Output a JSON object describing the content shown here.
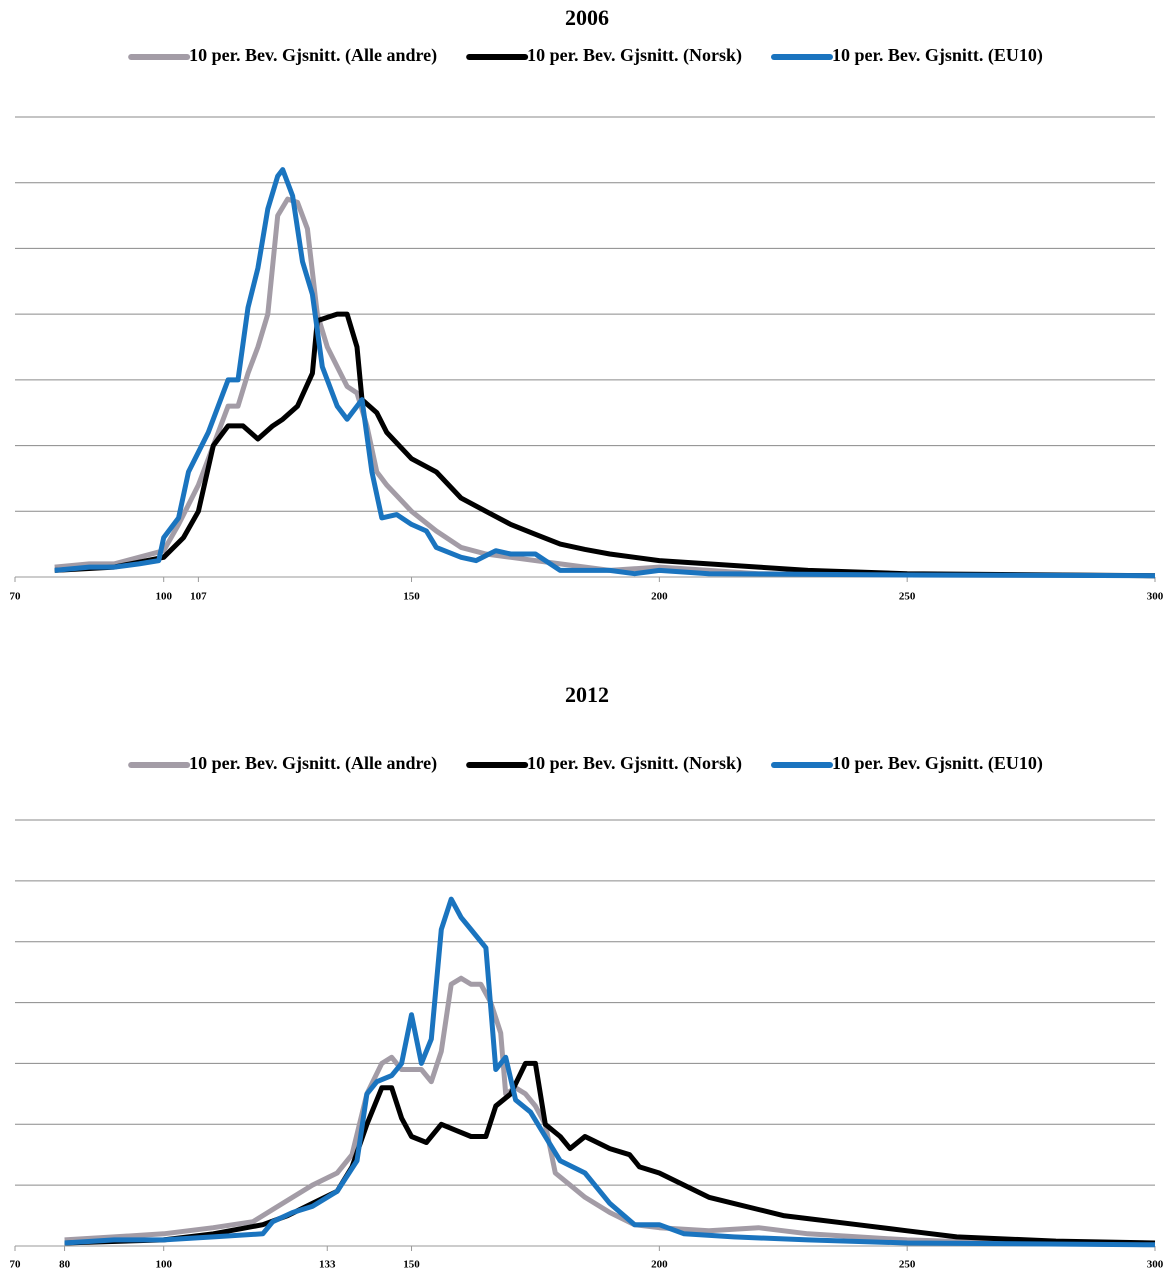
{
  "chart_data": [
    {
      "type": "line",
      "title": "2006",
      "xlim": [
        70,
        300
      ],
      "xticks": [
        70,
        100,
        107,
        150,
        200,
        250,
        300
      ],
      "ylim": [
        0,
        7
      ],
      "yticks": [
        0,
        1,
        2,
        3,
        4,
        5,
        6,
        7
      ],
      "grid": true,
      "legend": "top",
      "series": [
        {
          "name": "10 per. Bev. Gjsnitt. (Alle andre)",
          "color": "#a39ca6",
          "x": [
            78,
            85,
            90,
            95,
            100,
            103,
            107,
            110,
            113,
            115,
            117,
            119,
            121,
            123,
            125,
            127,
            129,
            131,
            133,
            135,
            137,
            139,
            141,
            143,
            145,
            150,
            155,
            160,
            165,
            170,
            180,
            190,
            200,
            210,
            220,
            250,
            300
          ],
          "values": [
            0.15,
            0.2,
            0.2,
            0.3,
            0.4,
            0.8,
            1.4,
            2.0,
            2.6,
            2.6,
            3.1,
            3.5,
            4.0,
            5.5,
            5.75,
            5.7,
            5.3,
            4.0,
            3.5,
            3.2,
            2.9,
            2.8,
            2.3,
            1.6,
            1.4,
            1.0,
            0.7,
            0.45,
            0.35,
            0.3,
            0.2,
            0.1,
            0.15,
            0.1,
            0.05,
            0.03,
            0.02
          ]
        },
        {
          "name": "10 per. Bev. Gjsnitt. (Norsk)",
          "color": "#000000",
          "x": [
            78,
            90,
            100,
            104,
            107,
            110,
            113,
            116,
            119,
            122,
            124,
            127,
            130,
            131,
            133,
            135,
            137,
            139,
            140,
            143,
            145,
            150,
            155,
            160,
            165,
            170,
            175,
            180,
            185,
            190,
            200,
            210,
            220,
            230,
            250,
            300
          ],
          "values": [
            0.1,
            0.15,
            0.3,
            0.6,
            1.0,
            2.0,
            2.3,
            2.3,
            2.1,
            2.3,
            2.4,
            2.6,
            3.1,
            3.9,
            3.95,
            4.0,
            4.0,
            3.5,
            2.7,
            2.5,
            2.2,
            1.8,
            1.6,
            1.2,
            1.0,
            0.8,
            0.65,
            0.5,
            0.42,
            0.35,
            0.25,
            0.2,
            0.15,
            0.1,
            0.05,
            0.02
          ]
        },
        {
          "name": "10 per. Bev. Gjsnitt. (EU10)",
          "color": "#1a74bf",
          "x": [
            78,
            85,
            90,
            95,
            99,
            100,
            103,
            105,
            107,
            109,
            111,
            113,
            115,
            117,
            119,
            121,
            123,
            124,
            126,
            128,
            130,
            132,
            135,
            137,
            140,
            142,
            144,
            147,
            150,
            153,
            155,
            160,
            163,
            167,
            170,
            175,
            180,
            190,
            195,
            200,
            210,
            250,
            300
          ],
          "values": [
            0.1,
            0.15,
            0.15,
            0.2,
            0.25,
            0.6,
            0.9,
            1.6,
            1.9,
            2.2,
            2.6,
            3.0,
            3.0,
            4.1,
            4.7,
            5.6,
            6.1,
            6.2,
            5.8,
            4.8,
            4.3,
            3.2,
            2.6,
            2.4,
            2.7,
            1.6,
            0.9,
            0.95,
            0.8,
            0.7,
            0.45,
            0.3,
            0.25,
            0.4,
            0.35,
            0.35,
            0.1,
            0.1,
            0.05,
            0.1,
            0.05,
            0.03,
            0.02
          ]
        }
      ]
    },
    {
      "type": "line",
      "title": "2012",
      "xlim": [
        70,
        300
      ],
      "xticks": [
        70,
        80,
        100,
        133,
        150,
        200,
        250,
        300
      ],
      "ylim": [
        0,
        7
      ],
      "yticks": [
        0,
        1,
        2,
        3,
        4,
        5,
        6,
        7
      ],
      "grid": true,
      "legend": "top",
      "series": [
        {
          "name": "10 per. Bev. Gjsnitt. (Alle andre)",
          "color": "#a39ca6",
          "x": [
            80,
            90,
            100,
            110,
            118,
            122,
            126,
            130,
            135,
            138,
            141,
            144,
            146,
            148,
            150,
            152,
            154,
            156,
            158,
            160,
            162,
            164,
            166,
            168,
            169,
            171,
            173,
            175,
            177,
            179,
            182,
            185,
            190,
            195,
            200,
            210,
            220,
            230,
            250,
            270,
            300
          ],
          "values": [
            0.1,
            0.15,
            0.2,
            0.3,
            0.4,
            0.6,
            0.8,
            1.0,
            1.2,
            1.5,
            2.5,
            3.0,
            3.1,
            2.9,
            2.9,
            2.9,
            2.7,
            3.2,
            4.3,
            4.4,
            4.3,
            4.3,
            4.0,
            3.5,
            2.5,
            2.6,
            2.5,
            2.3,
            2.0,
            1.2,
            1.0,
            0.8,
            0.55,
            0.35,
            0.3,
            0.25,
            0.3,
            0.2,
            0.1,
            0.05,
            0.02
          ]
        },
        {
          "name": "10 per. Bev. Gjsnitt. (Norsk)",
          "color": "#000000",
          "x": [
            80,
            100,
            110,
            120,
            125,
            130,
            135,
            138,
            141,
            144,
            146,
            148,
            150,
            153,
            156,
            159,
            162,
            165,
            167,
            170,
            173,
            175,
            177,
            180,
            182,
            185,
            190,
            194,
            196,
            200,
            205,
            210,
            215,
            220,
            225,
            230,
            240,
            250,
            260,
            280,
            300
          ],
          "values": [
            0.05,
            0.1,
            0.2,
            0.35,
            0.5,
            0.7,
            0.9,
            1.3,
            2.0,
            2.6,
            2.6,
            2.1,
            1.8,
            1.7,
            2.0,
            1.9,
            1.8,
            1.8,
            2.3,
            2.5,
            3.0,
            3.0,
            2.0,
            1.8,
            1.6,
            1.8,
            1.6,
            1.5,
            1.3,
            1.2,
            1.0,
            0.8,
            0.7,
            0.6,
            0.5,
            0.45,
            0.35,
            0.25,
            0.15,
            0.08,
            0.05
          ]
        },
        {
          "name": "10 per. Bev. Gjsnitt. (EU10)",
          "color": "#1a74bf",
          "x": [
            80,
            90,
            100,
            110,
            120,
            122,
            126,
            130,
            135,
            139,
            141,
            143,
            146,
            148,
            150,
            152,
            154,
            156,
            158,
            160,
            162,
            165,
            167,
            169,
            171,
            174,
            177,
            180,
            185,
            190,
            195,
            200,
            205,
            215,
            230,
            250,
            300
          ],
          "values": [
            0.05,
            0.1,
            0.1,
            0.15,
            0.2,
            0.4,
            0.55,
            0.65,
            0.9,
            1.4,
            2.5,
            2.7,
            2.8,
            3.0,
            3.8,
            3.0,
            3.4,
            5.2,
            5.7,
            5.4,
            5.2,
            4.9,
            2.9,
            3.1,
            2.4,
            2.2,
            1.8,
            1.4,
            1.2,
            0.7,
            0.35,
            0.35,
            0.2,
            0.15,
            0.1,
            0.05,
            0.02
          ]
        }
      ]
    }
  ]
}
